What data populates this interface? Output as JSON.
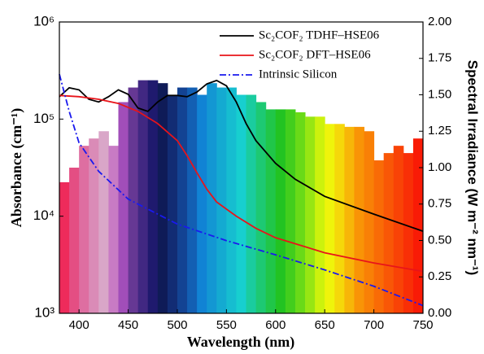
{
  "chart_data": {
    "type": "line",
    "xlabel": "Wavelength (nm)",
    "ylabel": "Absorbance (cm⁻¹)",
    "y2label": "Spectral Irradiance (W m⁻² nm⁻¹)",
    "xlim": [
      380,
      750
    ],
    "xticks": [
      400,
      450,
      500,
      550,
      600,
      650,
      700,
      750
    ],
    "ylim": [
      1000,
      1000000
    ],
    "ylog": true,
    "yticks": [
      {
        "value": 1000,
        "label": "10³"
      },
      {
        "value": 10000,
        "label": "10⁴"
      },
      {
        "value": 100000,
        "label": "10⁵"
      },
      {
        "value": 1000000,
        "label": "10⁶"
      }
    ],
    "y2lim": [
      0,
      2
    ],
    "y2ticks": [
      {
        "value": 0,
        "label": "0.00"
      },
      0.25,
      {
        "value": 0.5,
        "label": "0.50"
      },
      0.75,
      {
        "value": 1,
        "label": "1.00"
      },
      1.25,
      {
        "value": 1.5,
        "label": "1.50"
      },
      1.75,
      {
        "value": 2,
        "label": "2.00"
      }
    ],
    "legend": "top-right",
    "series": [
      {
        "name": "Sc₂COF₂ TDHF–HSE06",
        "color": "#000000",
        "dash": "solid",
        "x": [
          380,
          390,
          400,
          410,
          420,
          430,
          440,
          450,
          460,
          470,
          480,
          490,
          500,
          510,
          520,
          530,
          540,
          550,
          560,
          570,
          580,
          600,
          620,
          650,
          700,
          750
        ],
        "values": [
          170000,
          210000,
          200000,
          160000,
          150000,
          170000,
          200000,
          180000,
          130000,
          120000,
          150000,
          175000,
          175000,
          170000,
          190000,
          230000,
          250000,
          220000,
          150000,
          90000,
          60000,
          35000,
          24000,
          16000,
          10500,
          7000
        ]
      },
      {
        "name": "Sc₂COF₂ DFT–HSE06",
        "color": "#e8141a",
        "dash": "solid",
        "x": [
          380,
          400,
          420,
          440,
          460,
          480,
          500,
          510,
          520,
          530,
          540,
          560,
          580,
          600,
          650,
          700,
          750
        ],
        "values": [
          175000,
          170000,
          160000,
          145000,
          120000,
          90000,
          60000,
          42000,
          28000,
          19000,
          14000,
          10000,
          7500,
          6000,
          4200,
          3300,
          2700
        ]
      },
      {
        "name": "Intrinsic Silicon",
        "color": "#1a1aee",
        "dash": "dashdot",
        "x": [
          380,
          390,
          400,
          420,
          450,
          500,
          550,
          600,
          650,
          700,
          750
        ],
        "values": [
          290000,
          120000,
          57000,
          29000,
          15000,
          8300,
          5600,
          4000,
          2800,
          1900,
          1200
        ]
      }
    ],
    "irradiance": {
      "axis": "y2",
      "x": [
        380,
        390,
        400,
        410,
        420,
        430,
        440,
        450,
        460,
        470,
        480,
        490,
        500,
        510,
        520,
        530,
        540,
        550,
        560,
        570,
        580,
        590,
        600,
        610,
        620,
        630,
        640,
        650,
        660,
        670,
        680,
        690,
        700,
        710,
        720,
        730,
        740
      ],
      "values": [
        0.9,
        1.0,
        1.15,
        1.2,
        1.25,
        1.15,
        1.45,
        1.55,
        1.6,
        1.6,
        1.58,
        1.5,
        1.55,
        1.55,
        1.5,
        1.58,
        1.55,
        1.55,
        1.5,
        1.5,
        1.45,
        1.4,
        1.4,
        1.4,
        1.38,
        1.35,
        1.35,
        1.3,
        1.3,
        1.28,
        1.28,
        1.25,
        1.05,
        1.1,
        1.15,
        1.1,
        1.2
      ]
    }
  }
}
